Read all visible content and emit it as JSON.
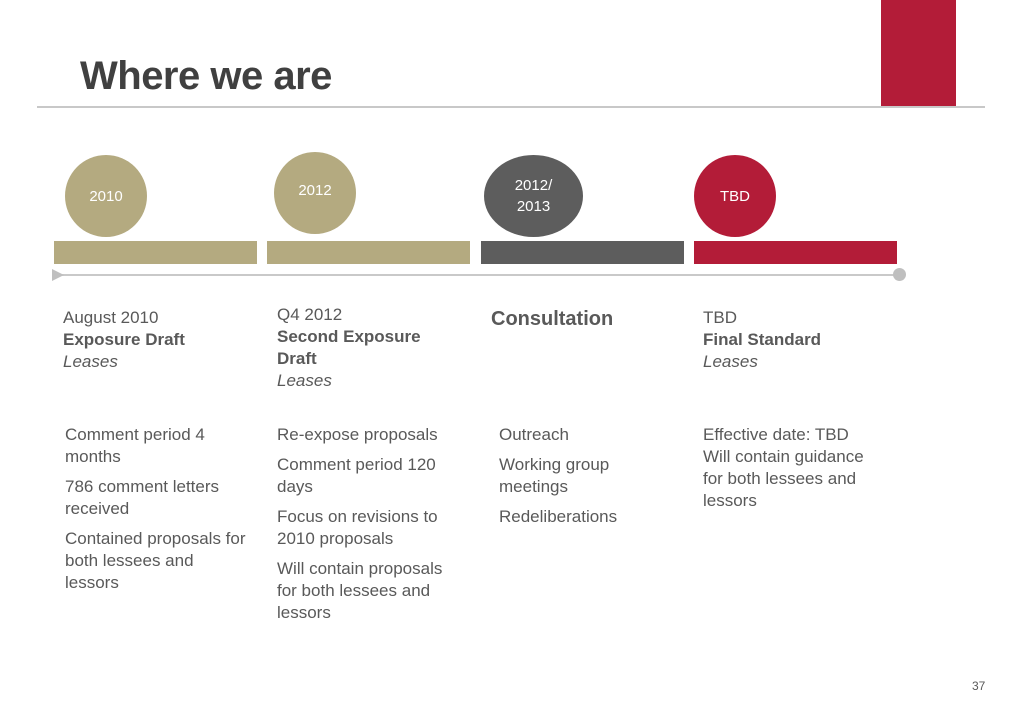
{
  "slide": {
    "title": "Where we are",
    "page_number": "37"
  },
  "colors": {
    "tan": "#b4aa80",
    "gray": "#5d5d5d",
    "red": "#b31c38"
  },
  "stages": [
    {
      "year": "2010",
      "date": "August 2010",
      "name": "Exposure Draft",
      "subject": "Leases",
      "bullets": [
        "Comment period 4 months",
        "786 comment letters received",
        "Contained proposals for both lessees and lessors"
      ]
    },
    {
      "year": "2012",
      "date": "Q4 2012",
      "name": "Second Exposure Draft",
      "subject": "Leases",
      "bullets": [
        "Re-expose proposals",
        "Comment period 120 days",
        "Focus on revisions to 2010 proposals",
        "Will contain proposals for both lessees and lessors"
      ]
    },
    {
      "year": "2012/ 2013",
      "name": "Consultation",
      "bullets": [
        "Outreach",
        "Working group meetings",
        "Redeliberations"
      ]
    },
    {
      "year": "TBD",
      "date": "TBD",
      "name": "Final Standard",
      "subject": "Leases",
      "bullets": [
        "Effective date: TBD",
        "Will contain guidance for both lessees and lessors"
      ]
    }
  ]
}
